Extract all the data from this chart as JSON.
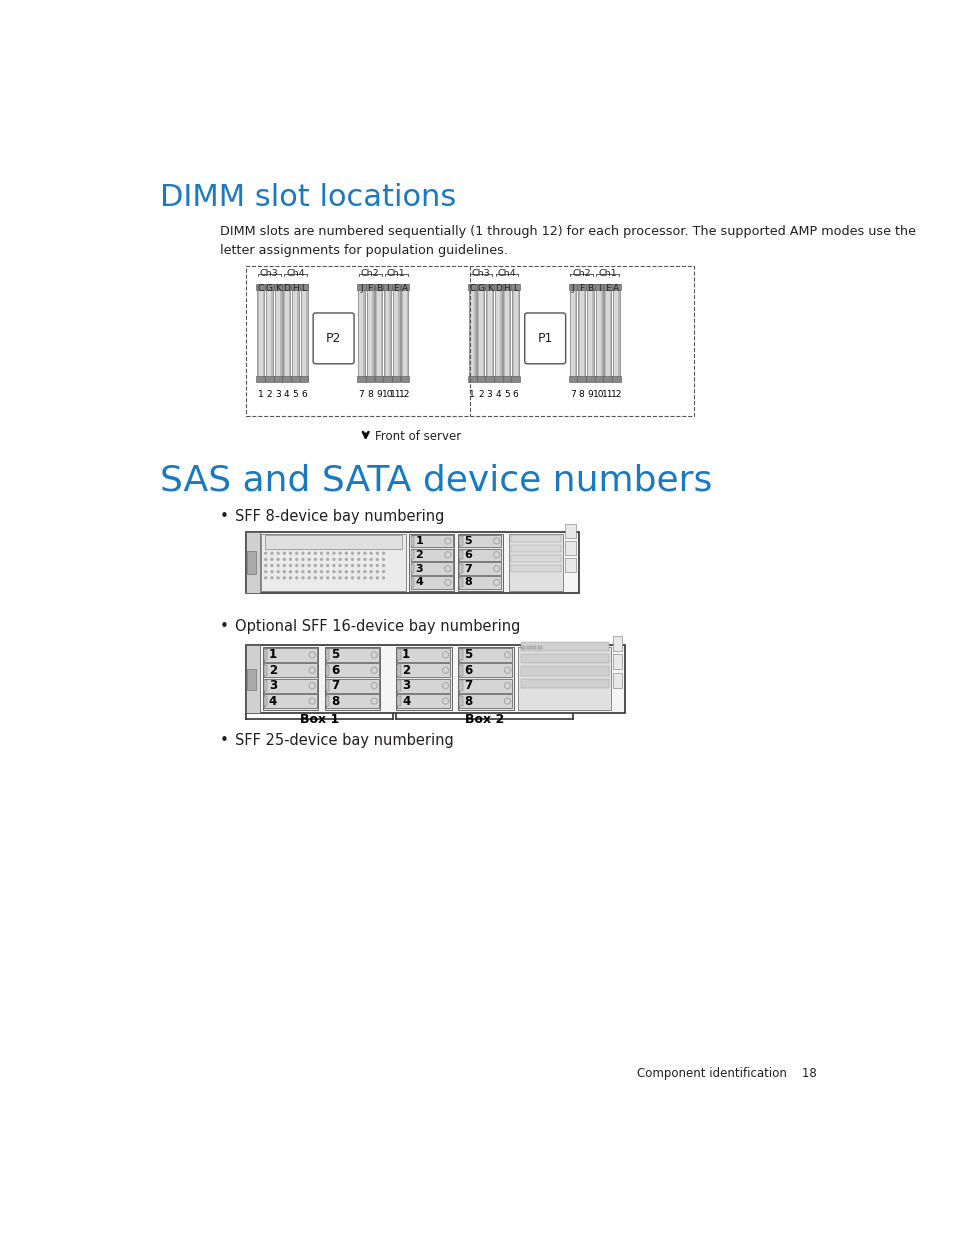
{
  "title_dimm": "DIMM slot locations",
  "title_sas": "SAS and SATA device numbers",
  "dimm_body_text": "DIMM slots are numbered sequentially (1 through 12) for each processor. The supported AMP modes use the\nletter assignments for population guidelines.",
  "bullet1": "SFF 8-device bay numbering",
  "bullet2": "Optional SFF 16-device bay numbering",
  "bullet3": "SFF 25-device bay numbering",
  "front_of_server": "Front of server",
  "box1": "Box 1",
  "box2": "Box 2",
  "component_id": "Component identification    18",
  "blue_color": "#1a7abf",
  "text_color": "#231f20",
  "gray_color": "#808080",
  "light_gray": "#cccccc",
  "dark_gray": "#555555",
  "bg_color": "#ffffff"
}
